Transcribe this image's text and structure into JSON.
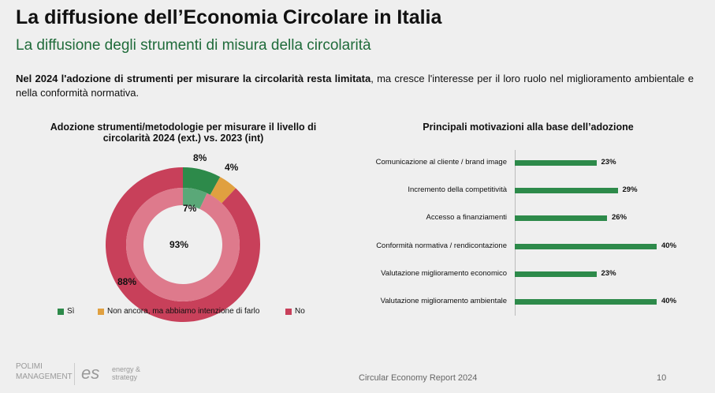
{
  "header": {
    "title": "La diffusione dell’Economia Circolare in Italia",
    "subtitle": "La diffusione degli strumenti di misura della circolarità"
  },
  "intro": {
    "bold": "Nel 2024 l'adozione di strumenti per misurare la circolarità resta limitata",
    "rest": ", ma cresce l'interesse per il loro ruolo nel miglioramento ambientale e nella conformità normativa."
  },
  "chart_data": [
    {
      "type": "pie",
      "title": "Adozione strumenti/metodologie per misurare il livello di circolarità 2024 (ext.) vs. 2023 (int)",
      "categories": [
        "Sì",
        "Non ancora, ma abbiamo intenzione di farlo",
        "No"
      ],
      "colors": [
        "#2d8a4a",
        "#e0a040",
        "#c8405a"
      ],
      "series": [
        {
          "name": "2024 (ext.)",
          "values": [
            8,
            4,
            88
          ],
          "labels": [
            "8%",
            "4%",
            "88%"
          ]
        },
        {
          "name": "2023 (int)",
          "values": [
            7,
            0,
            93
          ],
          "labels": [
            "7%",
            "",
            "93%"
          ],
          "colors": [
            "#5aa878",
            "#e0a040",
            "#de7a8c"
          ]
        }
      ],
      "legend": "bottom"
    },
    {
      "type": "bar",
      "orientation": "horizontal",
      "title": "Principali motivazioni alla base dell’adozione",
      "categories": [
        "Comunicazione al cliente / brand image",
        "Incremento della competitività",
        "Accesso a finanziamenti",
        "Conformità normativa / rendicontazione",
        "Valutazione miglioramento economico",
        "Valutazione miglioramento ambientale"
      ],
      "values": [
        23,
        29,
        26,
        40,
        23,
        40
      ],
      "labels": [
        "23%",
        "29%",
        "26%",
        "40%",
        "23%",
        "40%"
      ],
      "color": "#2d8a4a",
      "xlim": [
        0,
        40
      ]
    }
  ],
  "footer": {
    "report": "Circular Economy Report 2024",
    "page": "10",
    "logo1": "POLIMI MANAGEMENT",
    "logo2": "es",
    "logo2_text": "energy & strategy"
  }
}
